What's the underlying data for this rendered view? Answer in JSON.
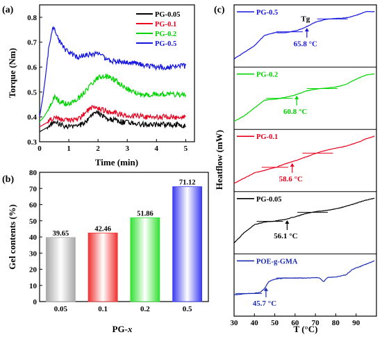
{
  "panel_a": {
    "label": "(a)",
    "chart_data": {
      "type": "line",
      "xlabel": "Time (min)",
      "ylabel": "Torque (Nm)",
      "xlim": [
        0,
        5.3
      ],
      "ylim": [
        0.3,
        0.85
      ],
      "xticks": [
        "0",
        "1",
        "2",
        "3",
        "4",
        "5"
      ],
      "yticks": [
        "0.3",
        "0.4",
        "0.5",
        "0.6",
        "0.7",
        "0.8"
      ],
      "legend_position": "top-right",
      "series": [
        {
          "name": "PG-0.05",
          "color": "#000000",
          "x": [
            0,
            0.15,
            0.3,
            0.5,
            0.7,
            1.0,
            1.3,
            1.6,
            1.85,
            2.1,
            2.4,
            2.8,
            3.2,
            3.6,
            4.0,
            4.5,
            5.0
          ],
          "y": [
            0.34,
            0.35,
            0.36,
            0.38,
            0.37,
            0.36,
            0.36,
            0.38,
            0.42,
            0.41,
            0.39,
            0.38,
            0.375,
            0.37,
            0.37,
            0.37,
            0.365
          ]
        },
        {
          "name": "PG-0.1",
          "color": "#e8001c",
          "x": [
            0,
            0.15,
            0.3,
            0.5,
            0.7,
            1.0,
            1.3,
            1.6,
            1.85,
            2.1,
            2.4,
            2.8,
            3.2,
            3.6,
            4.0,
            4.5,
            5.0
          ],
          "y": [
            0.36,
            0.37,
            0.38,
            0.4,
            0.39,
            0.385,
            0.39,
            0.42,
            0.44,
            0.43,
            0.42,
            0.41,
            0.405,
            0.4,
            0.4,
            0.4,
            0.4
          ]
        },
        {
          "name": "PG-0.2",
          "color": "#00d400",
          "x": [
            0,
            0.15,
            0.3,
            0.5,
            0.7,
            1.0,
            1.3,
            1.6,
            1.9,
            2.2,
            2.5,
            2.8,
            3.1,
            3.4,
            3.7,
            4.0,
            4.5,
            5.0
          ],
          "y": [
            0.38,
            0.4,
            0.43,
            0.48,
            0.46,
            0.45,
            0.47,
            0.51,
            0.55,
            0.565,
            0.555,
            0.53,
            0.505,
            0.49,
            0.49,
            0.49,
            0.49,
            0.49
          ]
        },
        {
          "name": "PG-0.5",
          "color": "#1414e0",
          "x": [
            0,
            0.1,
            0.2,
            0.3,
            0.4,
            0.5,
            0.6,
            0.8,
            1.0,
            1.3,
            1.6,
            1.9,
            2.2,
            2.5,
            3.0,
            3.5,
            4.0,
            4.5,
            5.0
          ],
          "y": [
            0.4,
            0.47,
            0.56,
            0.66,
            0.74,
            0.765,
            0.72,
            0.68,
            0.66,
            0.64,
            0.65,
            0.655,
            0.64,
            0.625,
            0.62,
            0.61,
            0.6,
            0.6,
            0.605
          ]
        }
      ]
    }
  },
  "panel_b": {
    "label": "(b)",
    "chart_data": {
      "type": "bar",
      "xlabel": "PG-",
      "xlabel_italic": "x",
      "ylabel": "Gel contents (%)",
      "ylim": [
        0,
        80
      ],
      "yticks": [
        "0",
        "10",
        "20",
        "30",
        "40",
        "50",
        "60",
        "70",
        "80"
      ],
      "categories": [
        "0.05",
        "0.1",
        "0.2",
        "0.5"
      ],
      "values": [
        39.65,
        42.46,
        51.86,
        71.12
      ],
      "value_labels": [
        "39.65",
        "42.46",
        "51.86",
        "71.12"
      ],
      "colors": [
        "#a8a8a8",
        "#f03030",
        "#33e033",
        "#3a3af0"
      ]
    }
  },
  "panel_c": {
    "label": "(c)",
    "chart_data": {
      "type": "line",
      "xlabel": "T (°C)",
      "ylabel": "Heatflow (mW)",
      "xlim": [
        30,
        100
      ],
      "xticks": [
        "30",
        "40",
        "50",
        "60",
        "70",
        "80",
        "90"
      ],
      "tg_marker_label": "Tg",
      "series": [
        {
          "name": "PG-0.5",
          "color": "#1414e0",
          "tg": 65.8,
          "tg_label": "65.8 °C",
          "x": [
            30,
            40,
            45,
            50,
            55,
            60,
            65,
            70,
            75,
            80,
            85,
            90,
            95,
            99
          ],
          "y": [
            0.05,
            0.3,
            0.5,
            0.55,
            0.55,
            0.58,
            0.65,
            0.75,
            0.8,
            0.82,
            0.83,
            0.88,
            0.95,
            0.95
          ]
        },
        {
          "name": "PG-0.2",
          "color": "#00d400",
          "tg": 60.8,
          "tg_label": "60.8 °C",
          "x": [
            30,
            35,
            40,
            45,
            50,
            55,
            60,
            65,
            70,
            75,
            80,
            85,
            90,
            95,
            99
          ],
          "y": [
            0.05,
            0.15,
            0.3,
            0.45,
            0.47,
            0.5,
            0.55,
            0.62,
            0.66,
            0.68,
            0.7,
            0.75,
            0.85,
            0.93,
            0.95
          ]
        },
        {
          "name": "PG-0.1",
          "color": "#e8001c",
          "tg": 58.6,
          "tg_label": "58.6 °C",
          "x": [
            30,
            35,
            40,
            45,
            50,
            55,
            60,
            65,
            70,
            75,
            80,
            85,
            90,
            95,
            99
          ],
          "y": [
            0.05,
            0.15,
            0.25,
            0.3,
            0.35,
            0.42,
            0.48,
            0.55,
            0.62,
            0.68,
            0.72,
            0.76,
            0.82,
            0.9,
            0.95
          ]
        },
        {
          "name": "PG-0.05",
          "color": "#000000",
          "tg": 56.1,
          "tg_label": "56.1 °C",
          "x": [
            30,
            35,
            40,
            45,
            50,
            55,
            60,
            65,
            70,
            75,
            80,
            85,
            90,
            95,
            99
          ],
          "y": [
            0.1,
            0.3,
            0.45,
            0.5,
            0.52,
            0.55,
            0.6,
            0.66,
            0.7,
            0.72,
            0.75,
            0.8,
            0.86,
            0.92,
            0.95
          ]
        },
        {
          "name": "POE-g-GMA",
          "color": "#1a2ab0",
          "tg": 45.7,
          "tg_label": "45.7 °C",
          "x": [
            30,
            35,
            40,
            43,
            45,
            47,
            50,
            55,
            60,
            65,
            70,
            72,
            74,
            76,
            80,
            85,
            88,
            92,
            96,
            99
          ],
          "y": [
            0.3,
            0.32,
            0.33,
            0.35,
            0.42,
            0.55,
            0.6,
            0.62,
            0.62,
            0.62,
            0.63,
            0.62,
            0.55,
            0.63,
            0.64,
            0.68,
            0.78,
            0.84,
            0.9,
            0.95
          ]
        }
      ]
    }
  }
}
